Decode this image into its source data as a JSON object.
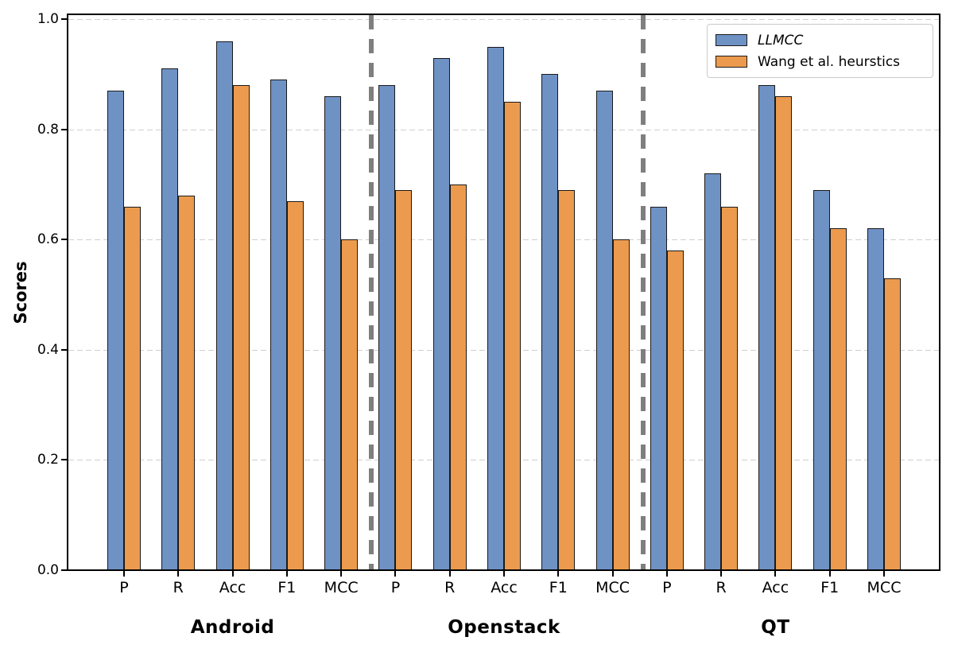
{
  "chart_data": {
    "type": "bar",
    "title": "",
    "xlabel": "",
    "ylabel": "Scores",
    "ylim": [
      0.0,
      1.0
    ],
    "ytick_labels": [
      "0.0",
      "0.2",
      "0.4",
      "0.6",
      "0.8",
      "1.0"
    ],
    "ytick_values": [
      0.0,
      0.2,
      0.4,
      0.6,
      0.8,
      1.0
    ],
    "grid": "horizontal-dashed",
    "legend_position": "upper-right",
    "groups": [
      "Android",
      "Openstack",
      "QT"
    ],
    "categories": [
      "P",
      "R",
      "Acc",
      "F1",
      "MCC"
    ],
    "series": [
      {
        "name": "LLMCC",
        "style": "italic",
        "color": "#6F92C5",
        "values": {
          "Android": [
            0.87,
            0.91,
            0.96,
            0.89,
            0.86
          ],
          "Openstack": [
            0.88,
            0.93,
            0.95,
            0.9,
            0.87
          ],
          "QT": [
            0.66,
            0.72,
            0.88,
            0.69,
            0.62
          ]
        }
      },
      {
        "name": "Wang et al. heurstics",
        "style": "normal",
        "color": "#EC9B4E",
        "values": {
          "Android": [
            0.66,
            0.68,
            0.88,
            0.67,
            0.6
          ],
          "Openstack": [
            0.69,
            0.7,
            0.85,
            0.69,
            0.6
          ],
          "QT": [
            0.58,
            0.66,
            0.86,
            0.62,
            0.53
          ]
        }
      }
    ],
    "bar_edge_color": "#1a1a1a",
    "gridline_color": "#cfcfcf",
    "separator_color": "#7f7f7f",
    "separators_between_groups": true
  }
}
